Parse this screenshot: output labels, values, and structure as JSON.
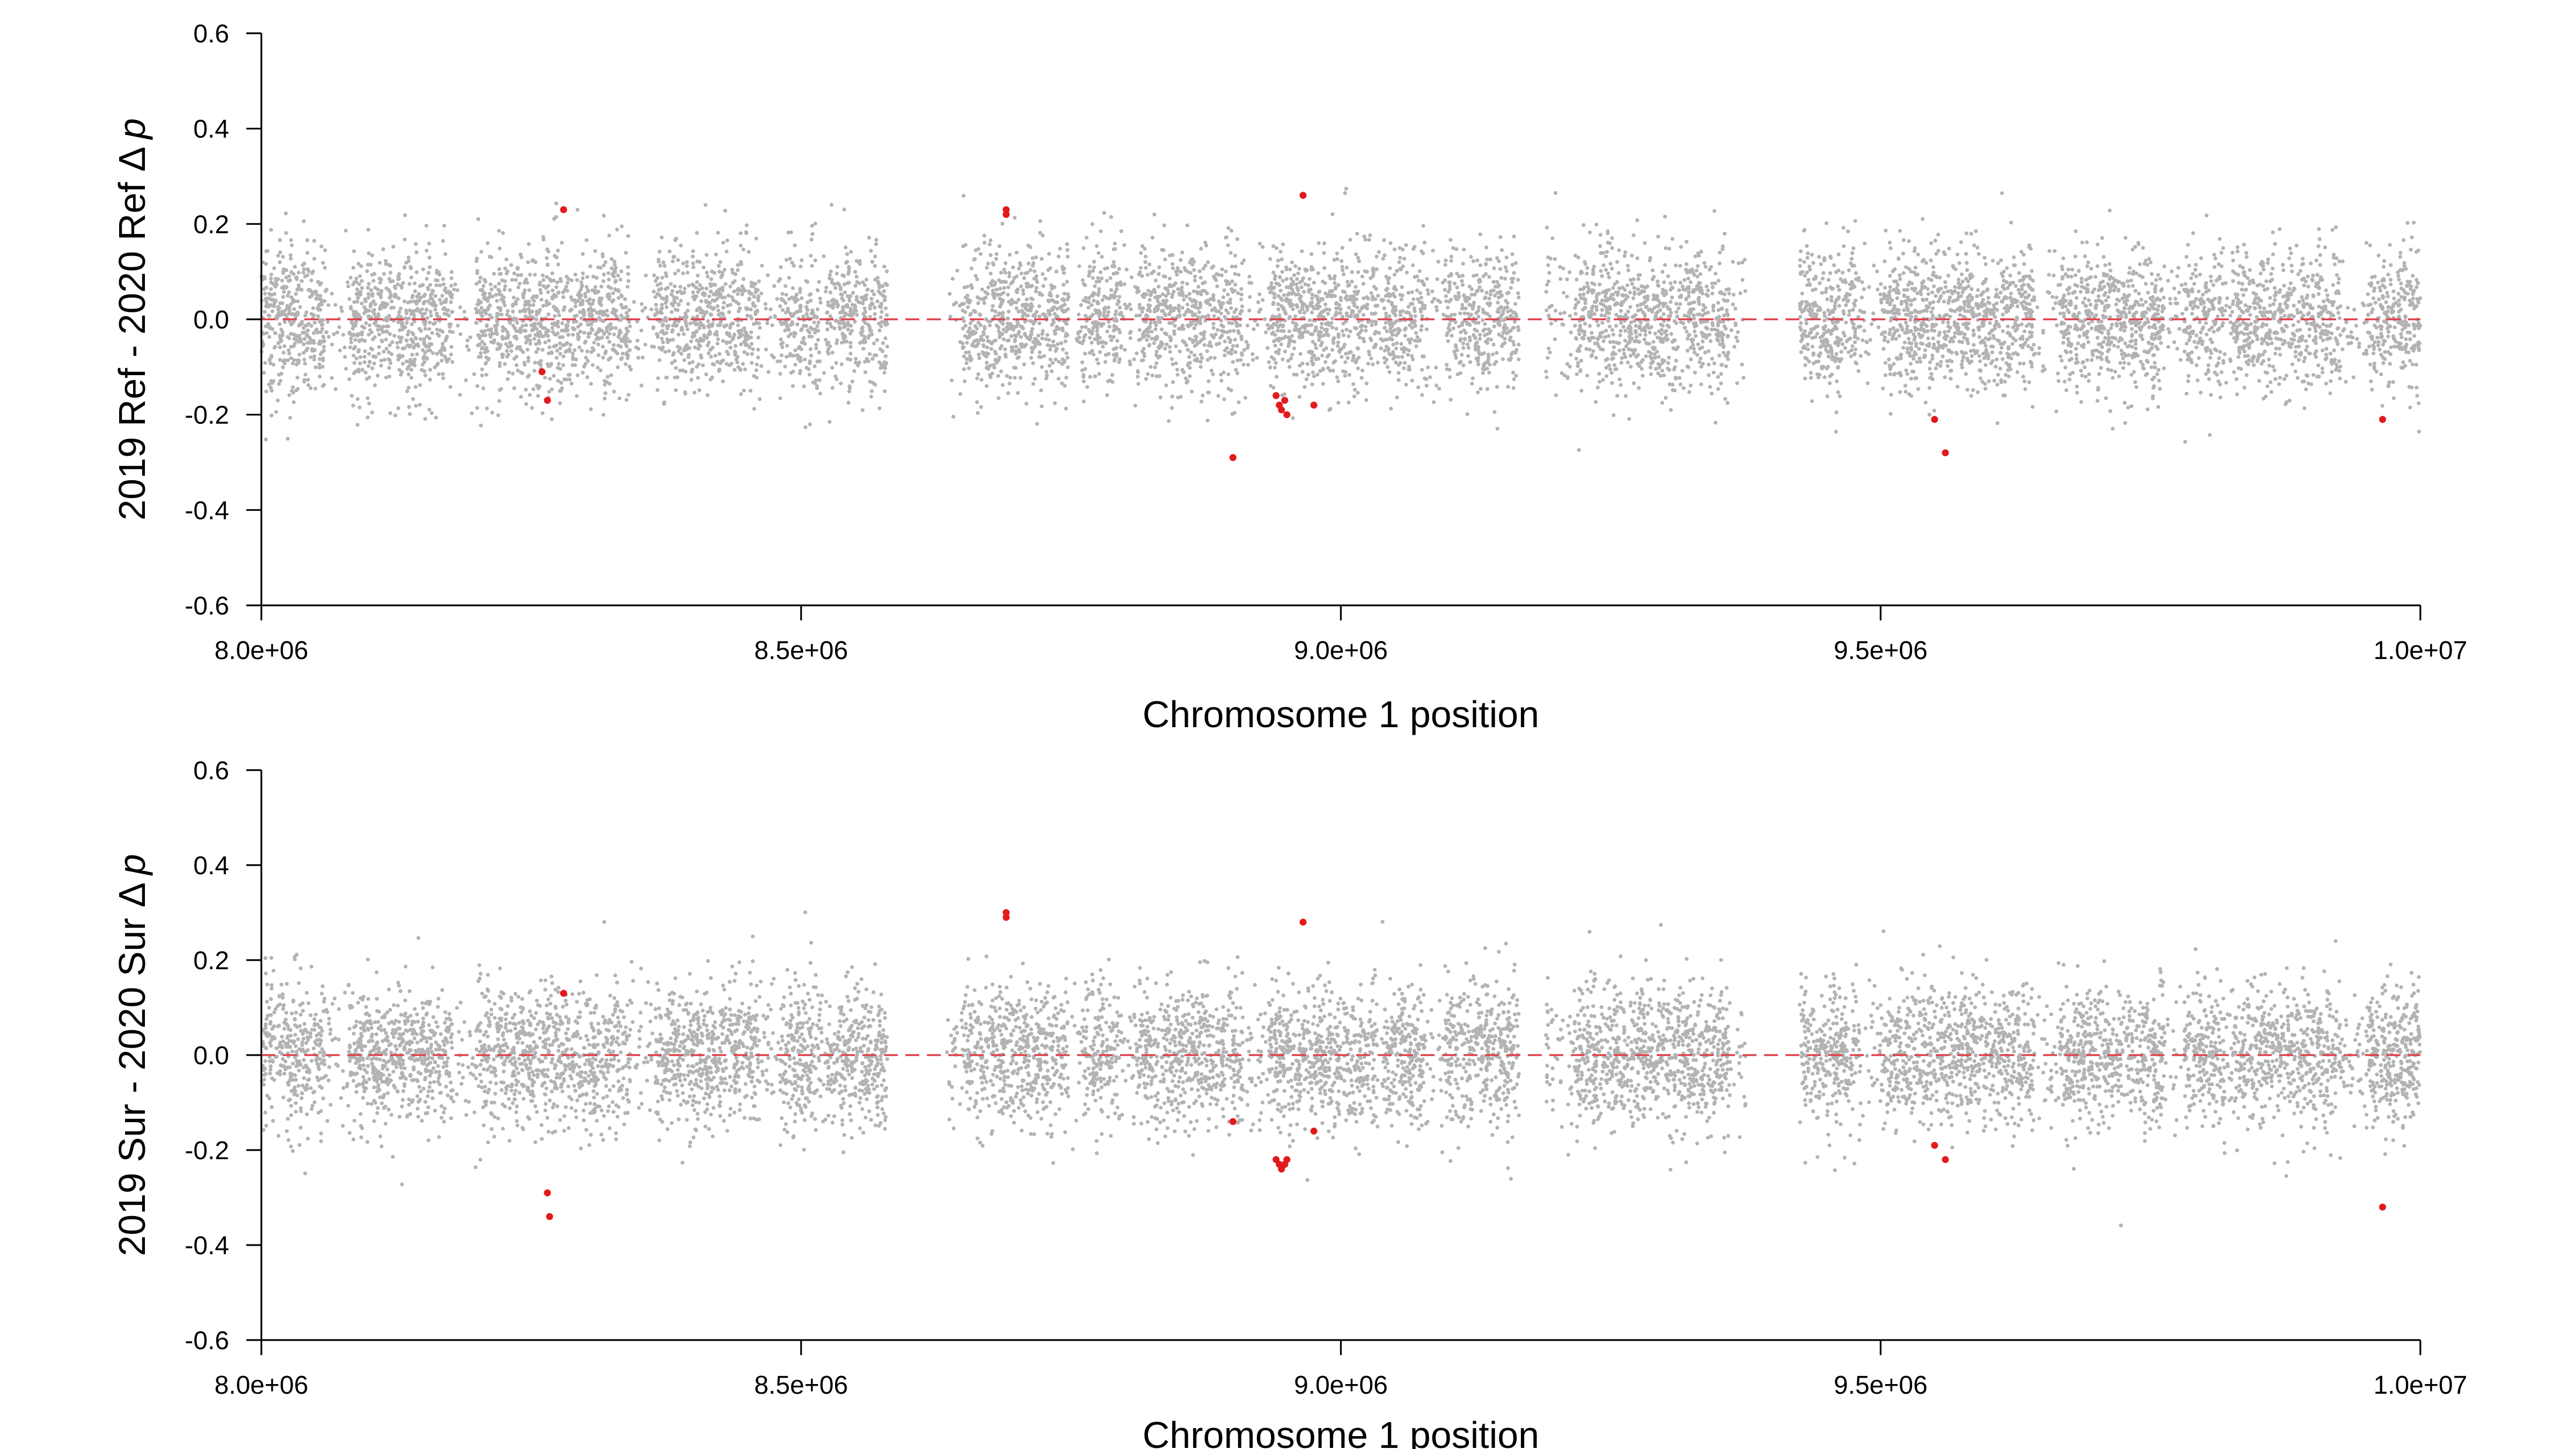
{
  "colors": {
    "background": "#ffffff",
    "background_points": "#b3b3b3",
    "highlight_points": "#e31a1c",
    "reference_line": "#e0414a",
    "axis": "#000000"
  },
  "chart_data": [
    {
      "type": "scatter",
      "title": "",
      "xlabel": "Chromosome 1 position",
      "ylabel_text": "2019 Ref - 2020 Ref ",
      "ylabel_delta": "Δ",
      "ylabel_p": "p",
      "xlim": [
        8000000,
        10000000
      ],
      "ylim": [
        -0.6,
        0.6
      ],
      "x_ticks": [
        8000000,
        8500000,
        9000000,
        9500000,
        10000000
      ],
      "x_tick_labels": [
        "8.0e+06",
        "8.5e+06",
        "9.0e+06",
        "9.5e+06",
        "1.0e+07"
      ],
      "y_ticks": [
        -0.6,
        -0.4,
        -0.2,
        0.0,
        0.2,
        0.4,
        0.6
      ],
      "y_tick_labels": [
        "-0.6",
        "-0.4",
        "-0.2",
        "0.0",
        "0.2",
        "0.4",
        "0.6"
      ],
      "reference_line_y": 0,
      "grid": false,
      "series": [
        {
          "role": "background",
          "point_count": 9000,
          "x_range": [
            8000000,
            10000000
          ],
          "typical_y_range": [
            -0.2,
            0.2
          ],
          "extreme_y_range": [
            -0.31,
            0.29
          ],
          "gaps_x": [
            [
              8580000,
              8635000
            ],
            [
              9165000,
              9190000
            ],
            [
              9375000,
              9425000
            ]
          ]
        },
        {
          "role": "highlighted",
          "points": [
            {
              "x": 8260000,
              "y": -0.11
            },
            {
              "x": 8265000,
              "y": -0.17
            },
            {
              "x": 8280000,
              "y": 0.23
            },
            {
              "x": 8690000,
              "y": 0.23
            },
            {
              "x": 8690000,
              "y": 0.22
            },
            {
              "x": 8900000,
              "y": -0.29
            },
            {
              "x": 8940000,
              "y": -0.16
            },
            {
              "x": 8943000,
              "y": -0.18
            },
            {
              "x": 8945000,
              "y": -0.19
            },
            {
              "x": 8948000,
              "y": -0.17
            },
            {
              "x": 8950000,
              "y": -0.2
            },
            {
              "x": 8965000,
              "y": 0.26
            },
            {
              "x": 8975000,
              "y": -0.18
            },
            {
              "x": 9550000,
              "y": -0.21
            },
            {
              "x": 9560000,
              "y": -0.28
            },
            {
              "x": 9965000,
              "y": -0.21
            }
          ]
        }
      ]
    },
    {
      "type": "scatter",
      "title": "",
      "xlabel": "Chromosome 1 position",
      "ylabel_text": "2019 Sur - 2020 Sur ",
      "ylabel_delta": "Δ",
      "ylabel_p": "p",
      "xlim": [
        8000000,
        10000000
      ],
      "ylim": [
        -0.6,
        0.6
      ],
      "x_ticks": [
        8000000,
        8500000,
        9000000,
        9500000,
        10000000
      ],
      "x_tick_labels": [
        "8.0e+06",
        "8.5e+06",
        "9.0e+06",
        "9.5e+06",
        "1.0e+07"
      ],
      "y_ticks": [
        -0.6,
        -0.4,
        -0.2,
        0.0,
        0.2,
        0.4,
        0.6
      ],
      "y_tick_labels": [
        "-0.6",
        "-0.4",
        "-0.2",
        "0.0",
        "0.2",
        "0.4",
        "0.6"
      ],
      "reference_line_y": 0,
      "grid": false,
      "series": [
        {
          "role": "background",
          "point_count": 9000,
          "x_range": [
            8000000,
            10000000
          ],
          "typical_y_range": [
            -0.2,
            0.2
          ],
          "extreme_y_range": [
            -0.37,
            0.41
          ],
          "gaps_x": [
            [
              8580000,
              8635000
            ],
            [
              9165000,
              9190000
            ],
            [
              9375000,
              9425000
            ]
          ]
        },
        {
          "role": "highlighted",
          "points": [
            {
              "x": 8265000,
              "y": -0.29
            },
            {
              "x": 8267000,
              "y": -0.34
            },
            {
              "x": 8280000,
              "y": 0.13
            },
            {
              "x": 8690000,
              "y": 0.3
            },
            {
              "x": 8690000,
              "y": 0.29
            },
            {
              "x": 8900000,
              "y": -0.14
            },
            {
              "x": 8940000,
              "y": -0.22
            },
            {
              "x": 8943000,
              "y": -0.23
            },
            {
              "x": 8945000,
              "y": -0.24
            },
            {
              "x": 8948000,
              "y": -0.23
            },
            {
              "x": 8950000,
              "y": -0.22
            },
            {
              "x": 8965000,
              "y": 0.28
            },
            {
              "x": 8975000,
              "y": -0.16
            },
            {
              "x": 9550000,
              "y": -0.19
            },
            {
              "x": 9560000,
              "y": -0.22
            },
            {
              "x": 9965000,
              "y": -0.32
            }
          ]
        }
      ]
    }
  ]
}
